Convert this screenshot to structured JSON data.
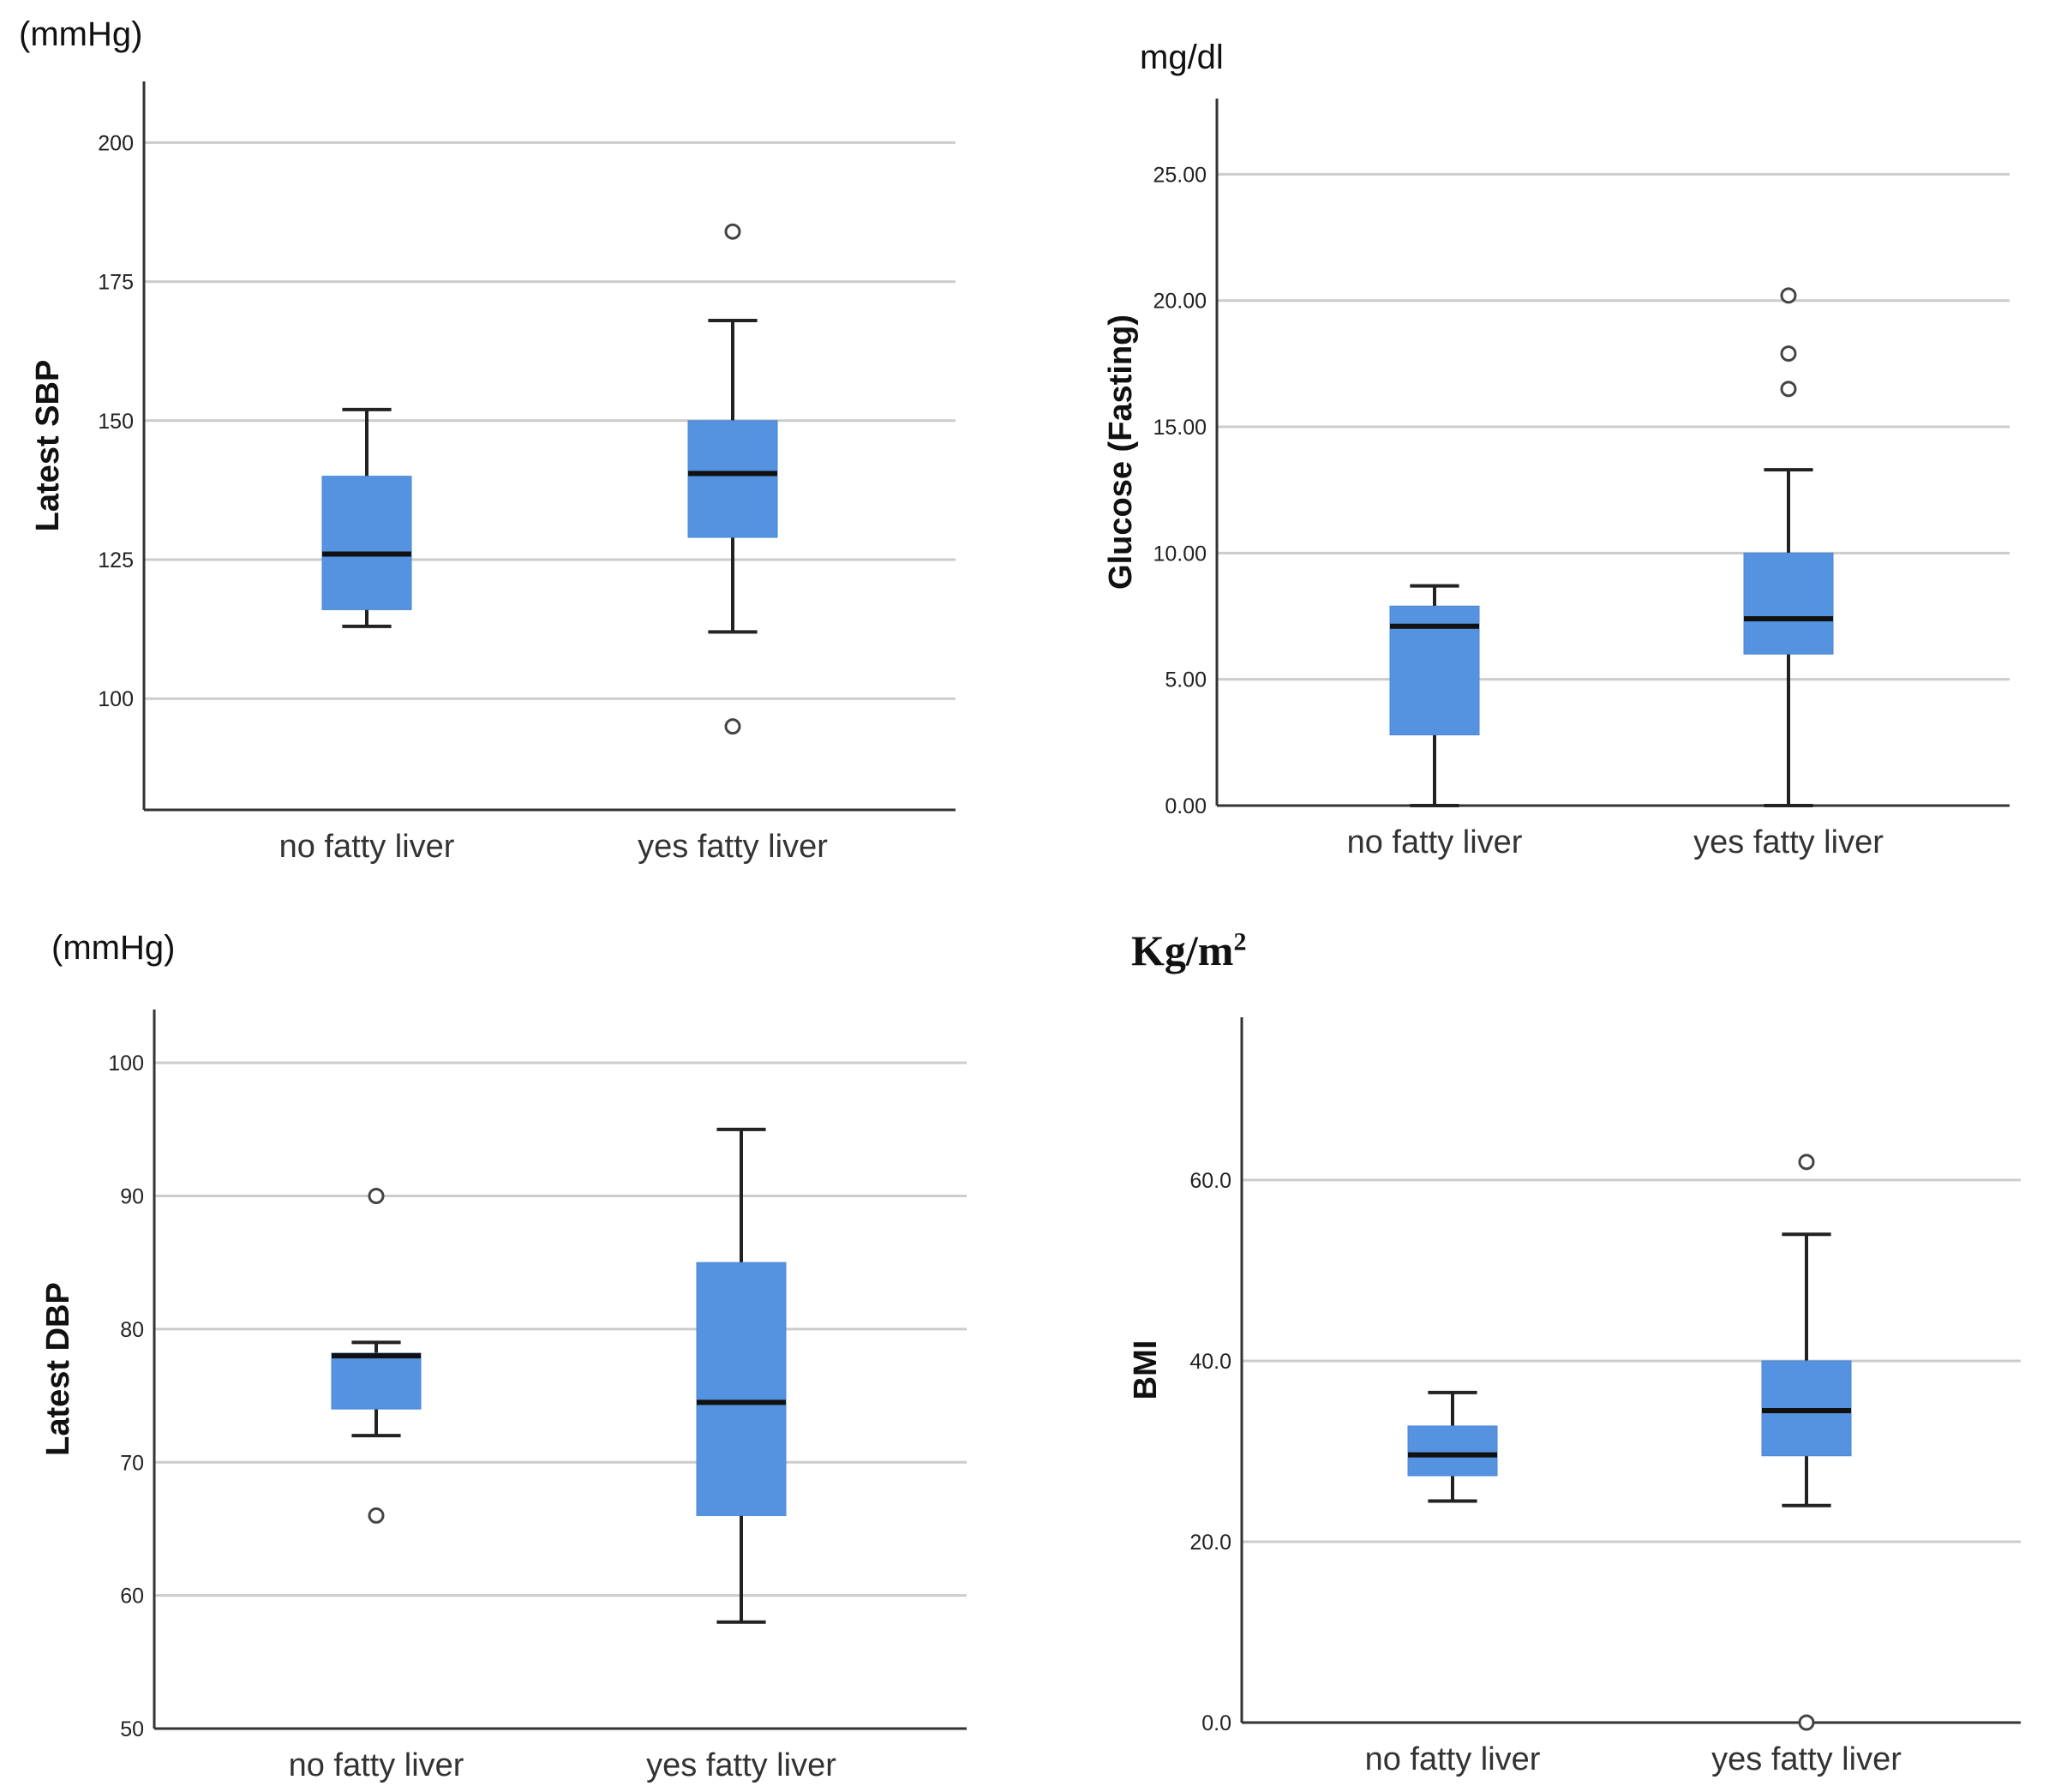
{
  "colors": {
    "box_fill": "#5593E0",
    "median": "#111111",
    "whisker": "#222222",
    "grid": "#cccccc",
    "axis": "#333333"
  },
  "panels": [
    {
      "unit_label": "(mmHg)"
    },
    {
      "unit_label": "mg/dl"
    },
    {
      "unit_label": "(mmHg)"
    },
    {
      "unit_label": "Kg/m",
      "unit_sup": "2"
    }
  ],
  "chart_data": [
    {
      "type": "box",
      "ylabel": "Latest SBP",
      "ylim": [
        80,
        211
      ],
      "yticks": [
        100,
        125,
        150,
        175,
        200
      ],
      "tick_labels": [
        "100",
        "125",
        "150",
        "175",
        "200"
      ],
      "categories": [
        "no fatty liver",
        "yes fatty liver"
      ],
      "boxes": [
        {
          "whisker_low": 113,
          "q1": 116,
          "median": 126,
          "q3": 140,
          "whisker_high": 152,
          "outliers": []
        },
        {
          "whisker_low": 112,
          "q1": 129,
          "median": 140.5,
          "q3": 150,
          "whisker_high": 168,
          "outliers": [
            95,
            184
          ]
        }
      ]
    },
    {
      "type": "box",
      "ylabel": "Glucose (Fasting)",
      "ylim": [
        0,
        28
      ],
      "yticks": [
        0,
        5,
        10,
        15,
        20,
        25
      ],
      "tick_labels": [
        "0.00",
        "5.00",
        "10.00",
        "15.00",
        "20.00",
        "25.00"
      ],
      "categories": [
        "no fatty liver",
        "yes fatty liver"
      ],
      "boxes": [
        {
          "whisker_low": 0,
          "q1": 2.8,
          "median": 7.1,
          "q3": 7.9,
          "whisker_high": 8.7,
          "outliers": []
        },
        {
          "whisker_low": 0,
          "q1": 6.0,
          "median": 7.4,
          "q3": 10.0,
          "whisker_high": 13.3,
          "outliers": [
            16.5,
            17.9,
            20.2
          ]
        }
      ]
    },
    {
      "type": "box",
      "ylabel": "Latest DBP",
      "ylim": [
        50,
        104
      ],
      "yticks": [
        50,
        60,
        70,
        80,
        90,
        100
      ],
      "tick_labels": [
        "50",
        "60",
        "70",
        "80",
        "90",
        "100"
      ],
      "categories": [
        "no fatty liver",
        "yes fatty liver"
      ],
      "boxes": [
        {
          "whisker_low": 72,
          "q1": 74,
          "median": 78,
          "q3": 78.2,
          "whisker_high": 79,
          "outliers": [
            66,
            90
          ]
        },
        {
          "whisker_low": 58,
          "q1": 66,
          "median": 74.5,
          "q3": 85,
          "whisker_high": 95,
          "outliers": []
        }
      ]
    },
    {
      "type": "box",
      "ylabel": "BMI",
      "ylim": [
        0,
        78
      ],
      "yticks": [
        0,
        20,
        40,
        60
      ],
      "tick_labels": [
        "0.0",
        "20.0",
        "40.0",
        "60.0"
      ],
      "categories": [
        "no fatty liver",
        "yes fatty liver"
      ],
      "boxes": [
        {
          "whisker_low": 24.5,
          "q1": 27.3,
          "median": 29.6,
          "q3": 32.8,
          "whisker_high": 36.5,
          "outliers": []
        },
        {
          "whisker_low": 24,
          "q1": 29.5,
          "median": 34.5,
          "q3": 40,
          "whisker_high": 54,
          "outliers": [
            0,
            62
          ]
        }
      ]
    }
  ]
}
